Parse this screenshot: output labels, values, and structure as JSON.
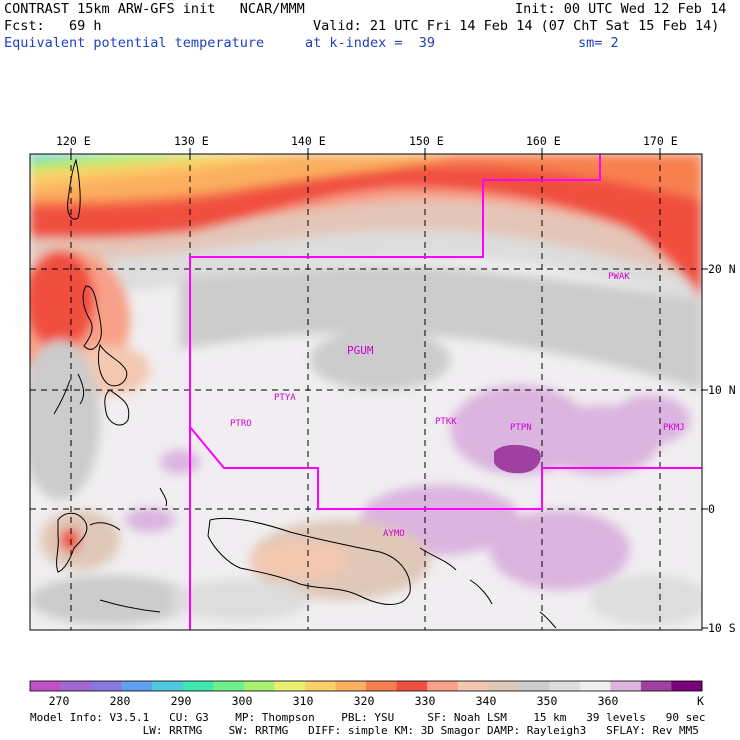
{
  "header": {
    "line1_left": "CONTRAST 15km ARW-GFS init   NCAR/MMM",
    "line1_right": "Init: 00 UTC Wed 12 Feb 14",
    "line2_left": "Fcst:   69 h",
    "line2_right": "Valid: 21 UTC Fri 14 Feb 14 (07 ChT Sat 15 Feb 14)",
    "line3_left": "Equivalent potential temperature",
    "line3_mid": "at k-index =  39",
    "line3_right": "sm= 2"
  },
  "axes": {
    "lon_labels": [
      "120 E",
      "130 E",
      "140 E",
      "150 E",
      "160 E",
      "170 E"
    ],
    "lat_labels": [
      "20 N",
      "10 N",
      "0",
      "10 S"
    ]
  },
  "stations": [
    {
      "id": "PWAK"
    },
    {
      "id": "PGUM"
    },
    {
      "id": "PTYA"
    },
    {
      "id": "PTRO"
    },
    {
      "id": "PTKK"
    },
    {
      "id": "PTPN"
    },
    {
      "id": "PKMJ"
    },
    {
      "id": "AYMO"
    }
  ],
  "colorbar": {
    "colors": [
      "#c050c8",
      "#a068d0",
      "#8878e0",
      "#60a0f0",
      "#50c8e0",
      "#40e8b0",
      "#70f088",
      "#a8f070",
      "#e8f070",
      "#fbd068",
      "#fbb060",
      "#f88050",
      "#f05040",
      "#f8a088",
      "#f4c8b0",
      "#e0c8b8",
      "#cccccc",
      "#dddddd",
      "#f0eef0",
      "#dcb4e0",
      "#a040a0",
      "#780078"
    ],
    "labels": [
      "270",
      "280",
      "290",
      "300",
      "310",
      "320",
      "330",
      "340",
      "350",
      "360"
    ],
    "unit": "K"
  },
  "footer": {
    "line1": "Model Info: V3.5.1   CU: G3    MP: Thompson    PBL: YSU     SF: Noah LSM    15 km   39 levels   90 sec",
    "line2": "                 LW: RRTMG    SW: RRTMG   DIFF: simple KM: 3D Smagor DAMP: Rayleigh3   SFLAY: Rev MM5"
  },
  "colors": {
    "boundary": "#ff00ff",
    "station": "#d000d0",
    "title_blue": "#1f3fbf"
  }
}
